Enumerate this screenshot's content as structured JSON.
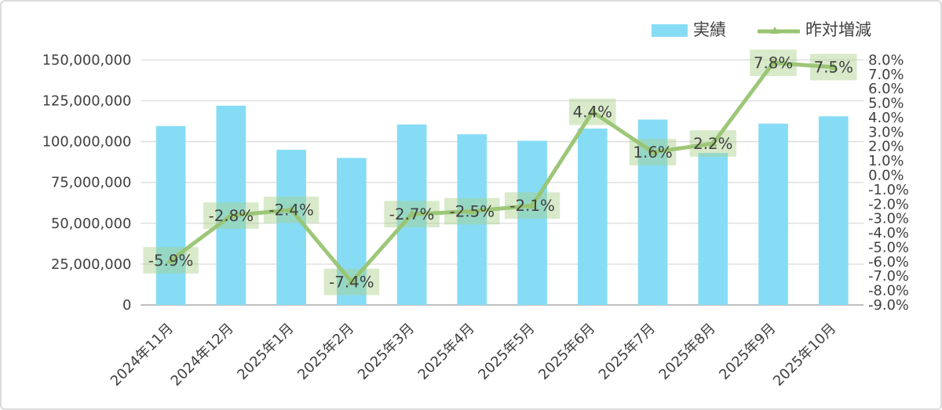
{
  "legend": {
    "items": [
      {
        "label": "実績",
        "type": "bar"
      },
      {
        "label": "昨対増減",
        "type": "line"
      }
    ]
  },
  "chart_data": {
    "type": "combo",
    "title": "",
    "categories": [
      "2024年11月",
      "2024年12月",
      "2025年1月",
      "2025年2月",
      "2025年3月",
      "2025年4月",
      "2025年5月",
      "2025年6月",
      "2025年7月",
      "2025年8月",
      "2025年9月",
      "2025年10月"
    ],
    "series": [
      {
        "name": "実績",
        "type": "bar",
        "axis": "left",
        "values": [
          109500000,
          122000000,
          95000000,
          90000000,
          110500000,
          104500000,
          100500000,
          108000000,
          113500000,
          93000000,
          111000000,
          115500000
        ]
      },
      {
        "name": "昨対増減",
        "type": "line",
        "axis": "right",
        "values": [
          -5.9,
          -2.8,
          -2.4,
          -7.4,
          -2.7,
          -2.5,
          -2.1,
          4.4,
          1.6,
          2.2,
          7.8,
          7.5
        ],
        "point_labels": [
          "-5.9%",
          "-2.8%",
          "-2.4%",
          "-7.4%",
          "-2.7%",
          "-2.5%",
          "-2.1%",
          "4.4%",
          "1.6%",
          "2.2%",
          "7.8%",
          "7.5%"
        ]
      }
    ],
    "left_axis": {
      "min": 0,
      "max": 150000000,
      "step": 25000000,
      "tick_labels": [
        "150,000,000",
        "125,000,000",
        "100,000,000",
        "75,000,000",
        "50,000,000",
        "25,000,000",
        "0"
      ]
    },
    "right_axis": {
      "min": -9,
      "max": 8,
      "step": 1,
      "tick_labels": [
        "8.0%",
        "7.0%",
        "6.0%",
        "5.0%",
        "4.0%",
        "3.0%",
        "2.0%",
        "1.0%",
        "0.0%",
        "-1.0%",
        "-2.0%",
        "-3.0%",
        "-4.0%",
        "-5.0%",
        "-6.0%",
        "-7.0%",
        "-8.0%",
        "-9.0%"
      ]
    },
    "grid": true,
    "legend_position": "top-right",
    "colors": {
      "bar": "#87dcf5",
      "line": "#98c471",
      "label_bg": "rgba(168,208,138,0.45)",
      "label_text": "#3b3b3b",
      "grid": "#dedede",
      "baseline": "#c0c0c0",
      "axis_text": "#404040"
    }
  }
}
